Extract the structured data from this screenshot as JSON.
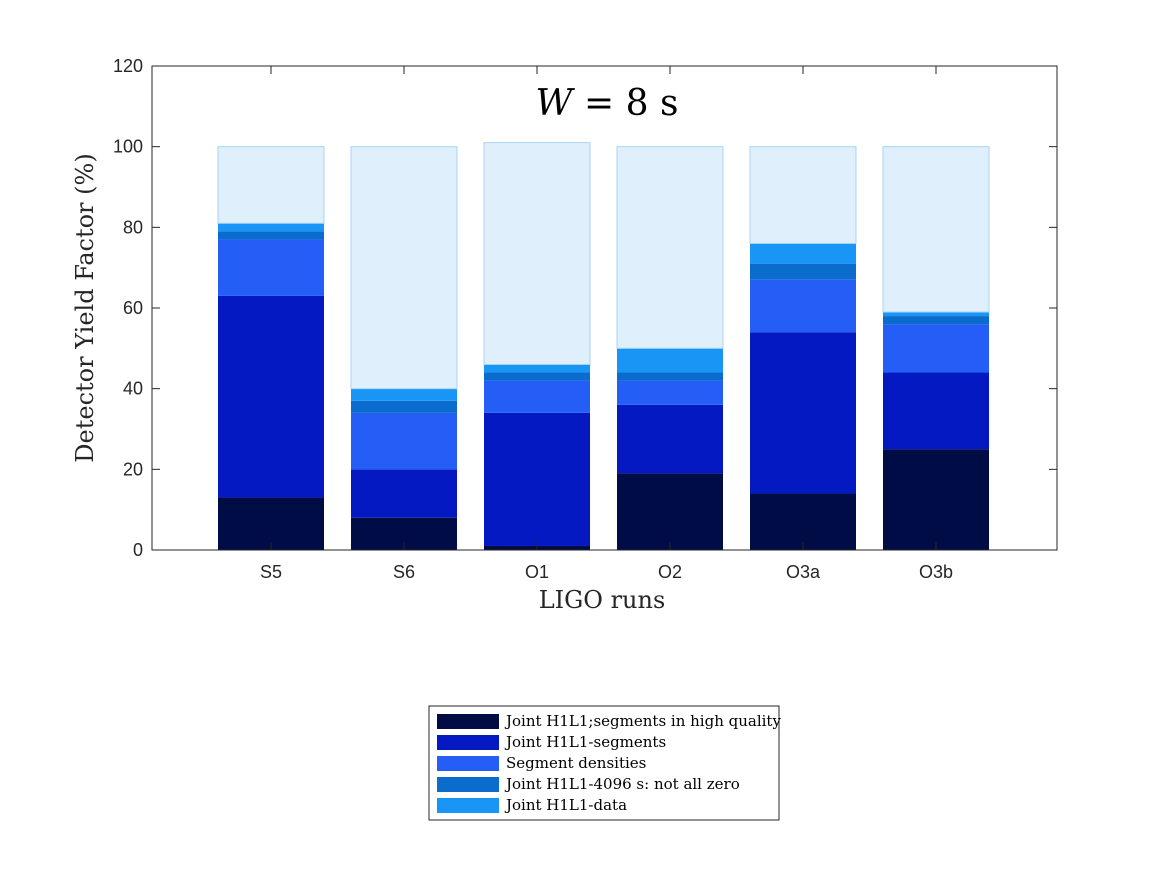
{
  "chart_data": {
    "type": "bar",
    "stacked": true,
    "title_var": "W",
    "title_rest": " = 8 s",
    "xlabel": "LIGO runs",
    "ylabel": "Detector Yield Factor (%)",
    "ylim": [
      0,
      120
    ],
    "yticks": [
      0,
      20,
      40,
      60,
      80,
      100,
      120
    ],
    "categories": [
      "S5",
      "S6",
      "O1",
      "O2",
      "O3a",
      "O3b"
    ],
    "series": [
      {
        "name": "Joint H1L1;segments in high quality",
        "color": "#000c45",
        "values": [
          13,
          8,
          1,
          19,
          14,
          25
        ]
      },
      {
        "name": "Joint H1L1-segments",
        "color": "#0419c2",
        "values": [
          50,
          12,
          33,
          17,
          40,
          19
        ]
      },
      {
        "name": "Segment densities",
        "color": "#245ef6",
        "values": [
          14,
          14,
          8,
          6,
          13,
          12
        ]
      },
      {
        "name": "Joint H1L1-4096 s: not all zero",
        "color": "#0a6dcd",
        "values": [
          2,
          3,
          2,
          2,
          4,
          2
        ]
      },
      {
        "name": "Joint H1L1-data",
        "color": "#1996f5",
        "values": [
          2,
          3,
          2,
          6,
          5,
          1
        ]
      },
      {
        "color": "#dff0fc",
        "values": [
          19,
          60,
          55,
          50,
          24,
          41
        ]
      }
    ],
    "legend_entries": 5,
    "legend_position": "below"
  }
}
